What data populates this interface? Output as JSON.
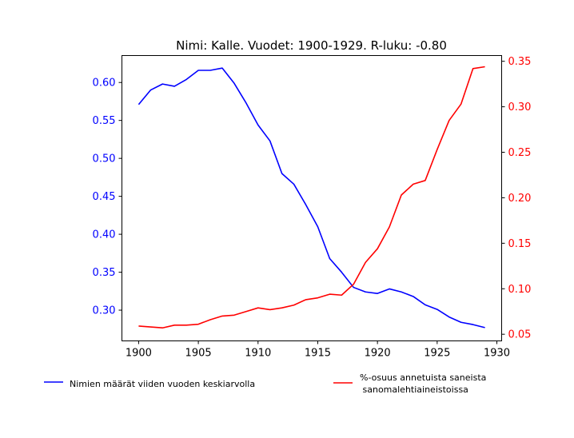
{
  "chart_data": {
    "type": "line",
    "title": "Nimi: Kalle. Vuodet: 1900-1929. R-luku: -0.80",
    "xlabel": "",
    "ylabel_left": "",
    "ylabel_right": "",
    "xlim": [
      1898.6,
      1930.4
    ],
    "x_ticks": [
      1900,
      1905,
      1910,
      1915,
      1920,
      1925,
      1930
    ],
    "ylim_left": [
      0.2595,
      0.6355
    ],
    "y_ticks_left": [
      "0.30",
      "0.35",
      "0.40",
      "0.45",
      "0.50",
      "0.55",
      "0.60"
    ],
    "ylim_right": [
      0.0427,
      0.3563
    ],
    "y_ticks_right": [
      "0.05",
      "0.10",
      "0.15",
      "0.20",
      "0.25",
      "0.30",
      "0.35"
    ],
    "grid": false,
    "legend_placement": "below",
    "x": [
      1900,
      1901,
      1902,
      1903,
      1904,
      1905,
      1906,
      1907,
      1908,
      1909,
      1910,
      1911,
      1912,
      1913,
      1914,
      1915,
      1916,
      1917,
      1918,
      1919,
      1920,
      1921,
      1922,
      1923,
      1924,
      1925,
      1926,
      1927,
      1928,
      1929
    ],
    "series": [
      {
        "name": "Nimien määrät viiden vuoden keskiarvolla",
        "axis": "left",
        "color": "#0000ff",
        "values": [
          0.571,
          0.59,
          0.598,
          0.595,
          0.604,
          0.616,
          0.616,
          0.619,
          0.599,
          0.573,
          0.544,
          0.523,
          0.48,
          0.466,
          0.439,
          0.41,
          0.368,
          0.35,
          0.33,
          0.324,
          0.322,
          0.328,
          0.324,
          0.318,
          0.307,
          0.301,
          0.291,
          0.284,
          0.281,
          0.277
        ]
      },
      {
        "name": "%-osuus annetuista saneista\n sanomalehtiaineistoissa",
        "axis": "right",
        "color": "#ff0000",
        "values": [
          0.059,
          0.058,
          0.057,
          0.06,
          0.06,
          0.061,
          0.066,
          0.07,
          0.071,
          0.075,
          0.079,
          0.077,
          0.079,
          0.082,
          0.088,
          0.09,
          0.094,
          0.093,
          0.105,
          0.129,
          0.144,
          0.168,
          0.203,
          0.215,
          0.219,
          0.253,
          0.285,
          0.303,
          0.342,
          0.344
        ]
      }
    ]
  }
}
